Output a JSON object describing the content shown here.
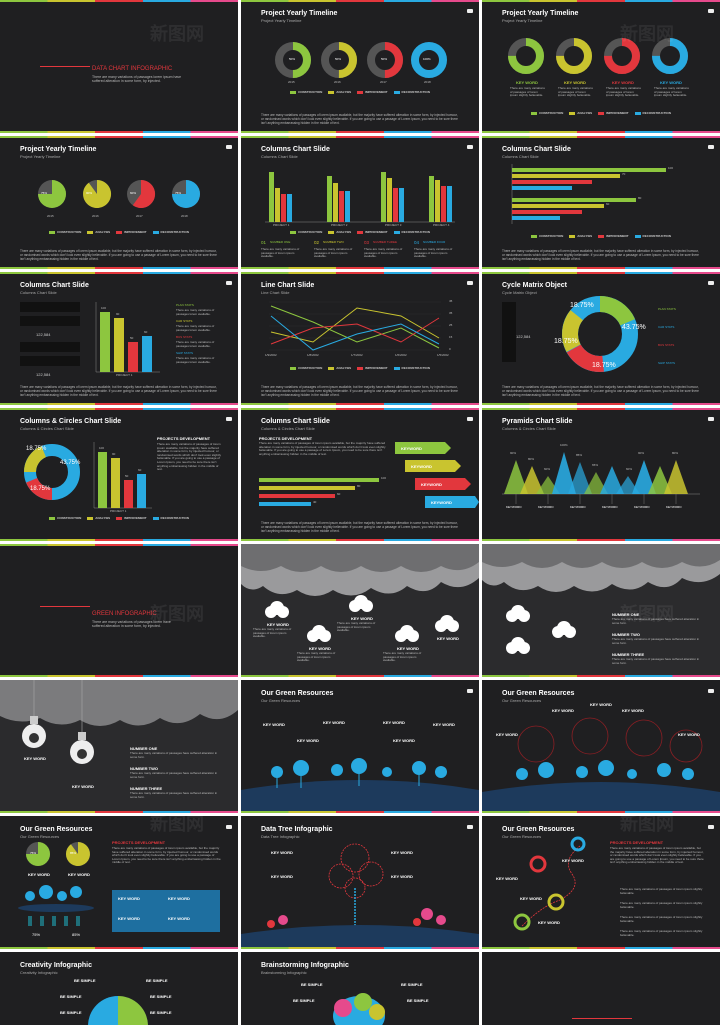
{
  "colors": {
    "green": "#8dc63f",
    "yellow": "#c9c42f",
    "red": "#e2373d",
    "blue": "#29aae1",
    "bg": "#1f1f21"
  },
  "watermark": "新图网",
  "legend": [
    "CONSTRUCTION",
    "ANALYSIS",
    "IMPROVEMENT",
    "RECONSTRUCTION"
  ],
  "para": "There are many variations of passages of lorem ipsum available, but the majority have suffered alteration in some form, by injected humour, or randomised words which don't look even slightly believable. If you are going to use a passage of Lorem Ipsum, you need to be sure there isn't anything embarrassing hidden in the middle of text.",
  "s1": {
    "title": "DATA CHART INFOGRAPHIC",
    "text": "There are many variations of passages lorem ipsum have suffered alteration in some form, by injected."
  },
  "s2": {
    "title": "Project Yearly Timeline",
    "sub": "Project Yearly Timeline",
    "pcts": [
      "50%",
      "50%",
      "50%",
      "100%"
    ],
    "years": [
      "2015",
      "2016",
      "2017",
      "2018"
    ]
  },
  "s3": {
    "title": "Project Yearly Timeline",
    "sub": "Project Yearly Timeline",
    "kw": "KEY WORD",
    "kwtext": "There are many variations of passages of lorem ipsum slightly believable."
  },
  "s4": {
    "title": "Project Yearly Timeline",
    "sub": "Project Yearly Timeline",
    "pcts": [
      "75%",
      "90%",
      "60%",
      "75%"
    ],
    "years": [
      "2015",
      "2016",
      "2017",
      "2018"
    ]
  },
  "s5": {
    "title": "Columns Chart Slide",
    "sub": "Columns Chart Slide",
    "projects": [
      "PROJECT 1",
      "PROJECT 2",
      "PROJECT 3",
      "PROJECT 4"
    ],
    "nums": [
      "01",
      "02",
      "03",
      "04"
    ],
    "numlabels": [
      "NUMBER ONE",
      "NUMBER TWO",
      "NUMBER THREE",
      "NUMBER FOUR"
    ],
    "numtext": "There are many variations of passages of lorem ipsum available."
  },
  "s6": {
    "title": "Columns Chart Slide",
    "sub": "Columns Chart Slide",
    "projects": [
      "PROJECT 1",
      "PROJECT 2"
    ],
    "vals": [
      "100",
      "70",
      "80",
      "60"
    ]
  },
  "s7": {
    "title": "Columns Chart Slide",
    "sub": "Columns Chart Slide",
    "counts": [
      "122,584",
      "122,584"
    ],
    "vals": [
      "100",
      "90",
      "50",
      "60"
    ],
    "project": "PROJECT 1",
    "stats": [
      "PLAN STATS",
      "CAR STATS",
      "BUS STATS",
      "SHIP STATS"
    ],
    "statstext": "There are many variations of passages lorem available."
  },
  "s8": {
    "title": "Line Chart Slide",
    "sub": "Line Chart Slide",
    "dates": [
      "1/9/2002",
      "1/8/2002",
      "1/7/2002",
      "1/6/2002",
      "1/5/2002"
    ],
    "yticks": [
      "45",
      "40",
      "35",
      "30",
      "25",
      "20",
      "15",
      "10",
      "5",
      "0"
    ]
  },
  "s9": {
    "title": "Cycle Matrix Object",
    "sub": "Cycle Matrix Object",
    "count": "122,584",
    "pcts": [
      "18.75%",
      "43.75%",
      "18.75%",
      "18.75%"
    ],
    "stats": [
      "PLAN STATS",
      "CAR STATS",
      "BUS STATS",
      "SHIP STATS"
    ]
  },
  "s10": {
    "title": "Columns & Circles Chart Slide",
    "sub": "Columns & Circles Chart Slide",
    "pcts": [
      "18.75%",
      "43.75%",
      "18.75%"
    ],
    "vals": [
      "100",
      "90",
      "50",
      "60"
    ],
    "project": "PROJECT 1",
    "heading": "PROJECTS DEVELOPMENT"
  },
  "s11": {
    "title": "Columns Chart Slide",
    "sub": "Columns & Circles Chart Slide",
    "heading": "PROJECTS DEVELOPMENT",
    "kw": "KEYWORD",
    "vals": [
      "100",
      "80",
      "60",
      "40"
    ]
  },
  "s12": {
    "title": "Pyramids Chart Slide",
    "sub": "Columns & Circles Chart Slide",
    "pcts": [
      "90%",
      "80%",
      "60%",
      "100%",
      "85%",
      "65%",
      "80%",
      "60%",
      "90%",
      "80%"
    ],
    "kw": "KEYWORD"
  },
  "s13": {
    "title": "GREEN INFOGRAPHIC",
    "text": "There are many variations of passages lorem have suffered alteration in some form, by injected."
  },
  "s14": {
    "kw": "KEY WORD",
    "kwtext": "There are many variations of passages of lorem ipsum available."
  },
  "s15": {
    "nums": [
      "NUMBER ONE",
      "NUMBER TWO",
      "NUMBER THREE"
    ],
    "text": "There are many variations of passages have suffered alteration in some form."
  },
  "s16": {
    "kw": "KEY WORD",
    "nums": [
      "NUMBER ONE",
      "NUMBER TWO",
      "NUMBER THREE"
    ]
  },
  "s17": {
    "title": "Our Green Resources",
    "sub": "Our Green Resources",
    "kw": "KEY WORD"
  },
  "s18": {
    "title": "Our Green Resources",
    "sub": "Our Green Resources",
    "kw": "KEY WORD"
  },
  "s19": {
    "title": "Our Green Resources",
    "sub": "Our Green Resources",
    "pcts": [
      "75%",
      "85%"
    ],
    "heading": "PROJECTS DEVELOPMENT",
    "kw": "KEY WORD"
  },
  "s20": {
    "title": "Data Tree Infographic",
    "sub": "Data Tree Infographic",
    "kw": "KEY WORD"
  },
  "s21": {
    "title": "Our Green Resources",
    "sub": "Our Green Resources",
    "heading": "PROJECTS DEVELOPMENT",
    "kw": "KEY WORD"
  },
  "s22": {
    "title": "Creativity Infographic",
    "sub": "Creativity Infographic",
    "kw": "BE SIMPLE"
  },
  "s23": {
    "title": "Brainstorming Infographic",
    "sub": "Brainstorming Infographic",
    "kw": "BE SIMPLE"
  }
}
